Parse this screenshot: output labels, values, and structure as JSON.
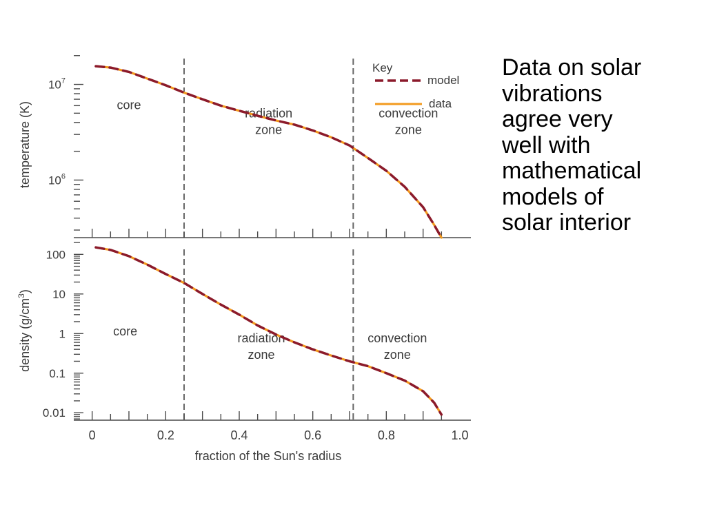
{
  "caption": {
    "lines": [
      "Data on solar",
      "vibrations",
      "agree very",
      "well with",
      "mathematical",
      "models of",
      "solar interior"
    ]
  },
  "key": {
    "title": "Key",
    "model_label": "model",
    "data_label": "data"
  },
  "colors": {
    "model": "#8b1a2b",
    "data": "#f39a1e",
    "axis": "#4a4a4a",
    "divider": "#666666"
  },
  "chart_data": [
    {
      "type": "line",
      "panel": "temperature",
      "ylabel": "temperature (K)",
      "yscale": "log",
      "ylim": [
        250000,
        22000000
      ],
      "y_tick_labels": [
        {
          "value": 10000000,
          "base": "10",
          "exp": "7"
        },
        {
          "value": 1000000,
          "base": "10",
          "exp": "6"
        }
      ],
      "xlim": [
        -0.05,
        1.03
      ],
      "zone_boundaries": [
        0.25,
        0.71
      ],
      "zones": [
        {
          "lines": [
            "core"
          ],
          "x": 0.1,
          "y": 5500000
        },
        {
          "lines": [
            "radiation",
            "zone"
          ],
          "x": 0.48,
          "y": 4500000
        },
        {
          "lines": [
            "convection",
            "zone"
          ],
          "x": 0.86,
          "y": 4500000
        }
      ],
      "x": [
        0.01,
        0.05,
        0.1,
        0.15,
        0.2,
        0.25,
        0.3,
        0.35,
        0.4,
        0.45,
        0.5,
        0.55,
        0.6,
        0.65,
        0.7,
        0.75,
        0.8,
        0.85,
        0.9,
        0.93,
        0.95
      ],
      "series": [
        {
          "name": "model",
          "style": "dashed",
          "values": [
            15500000,
            15000000,
            13500000,
            11500000,
            9800000,
            8200000,
            7000000,
            6000000,
            5300000,
            4700000,
            4200000,
            3800000,
            3300000,
            2800000,
            2300000,
            1700000,
            1250000,
            850000,
            520000,
            340000,
            250000
          ]
        },
        {
          "name": "data",
          "style": "solid",
          "values": [
            15500000,
            15000000,
            13500000,
            11500000,
            9800000,
            8200000,
            7000000,
            6000000,
            5300000,
            4700000,
            4200000,
            3800000,
            3300000,
            2800000,
            2300000,
            1700000,
            1250000,
            850000,
            520000,
            340000,
            250000
          ]
        }
      ]
    },
    {
      "type": "line",
      "panel": "density",
      "ylabel": "density (g/cm",
      "ylabel_sup": "3",
      "ylabel_tail": ")",
      "yscale": "log",
      "ylim": [
        0.0065,
        200
      ],
      "y_tick_labels": [
        {
          "value": 100,
          "label": "100"
        },
        {
          "value": 10,
          "label": "10"
        },
        {
          "value": 1,
          "label": "1"
        },
        {
          "value": 0.1,
          "label": "0.1"
        },
        {
          "value": 0.01,
          "label": "0.01"
        }
      ],
      "x_tick_labels": [
        {
          "value": 0,
          "label": "0"
        },
        {
          "value": 0.2,
          "label": "0.2"
        },
        {
          "value": 0.4,
          "label": "0.4"
        },
        {
          "value": 0.6,
          "label": "0.6"
        },
        {
          "value": 0.8,
          "label": "0.8"
        },
        {
          "value": 1.0,
          "label": "1.0"
        }
      ],
      "xlabel": "fraction of the Sun's radius",
      "xlim": [
        -0.05,
        1.03
      ],
      "zone_boundaries": [
        0.25,
        0.71
      ],
      "zones": [
        {
          "lines": [
            "core"
          ],
          "x": 0.09,
          "y": 0.9
        },
        {
          "lines": [
            "radiation",
            "zone"
          ],
          "x": 0.46,
          "y": 0.6
        },
        {
          "lines": [
            "convection",
            "zone"
          ],
          "x": 0.83,
          "y": 0.6
        }
      ],
      "x": [
        0.01,
        0.05,
        0.1,
        0.15,
        0.2,
        0.25,
        0.3,
        0.35,
        0.4,
        0.45,
        0.5,
        0.55,
        0.6,
        0.65,
        0.7,
        0.75,
        0.8,
        0.85,
        0.9,
        0.93,
        0.95
      ],
      "series": [
        {
          "name": "model",
          "style": "dashed",
          "values": [
            150,
            130,
            90,
            55,
            32,
            19,
            10,
            5.4,
            3,
            1.6,
            0.95,
            0.6,
            0.4,
            0.28,
            0.2,
            0.15,
            0.1,
            0.065,
            0.035,
            0.018,
            0.009
          ]
        },
        {
          "name": "data",
          "style": "solid",
          "values": [
            150,
            130,
            90,
            55,
            32,
            19,
            10,
            5.4,
            3,
            1.6,
            0.95,
            0.6,
            0.4,
            0.28,
            0.2,
            0.15,
            0.1,
            0.065,
            0.035,
            0.018,
            0.009
          ]
        }
      ]
    }
  ]
}
